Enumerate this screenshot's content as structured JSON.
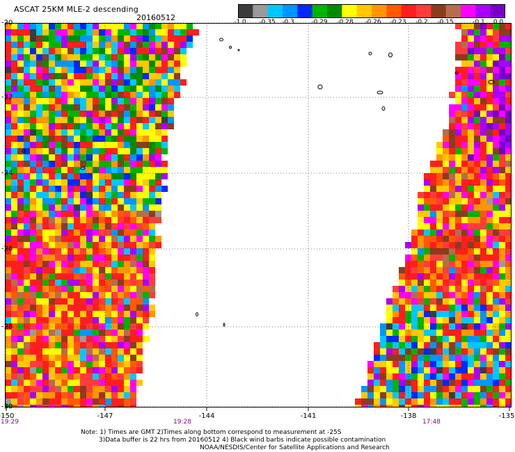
{
  "header": {
    "title": "ASCAT 25KM MLE-2 descending",
    "date": "20160512"
  },
  "colorbar": {
    "colors": [
      "#3c3c3c",
      "#9a9a9a",
      "#00c8ff",
      "#0096ff",
      "#0028ff",
      "#00b400",
      "#008c00",
      "#ffff00",
      "#ffc800",
      "#ff9600",
      "#ff5a00",
      "#ff1e1e",
      "#ff3c3c",
      "#8c3c1e",
      "#b46e4b",
      "#ff00ff",
      "#aa00ff",
      "#7800c8"
    ],
    "labels": [
      "-1.0",
      "-0.35",
      "-0.3",
      "-0.29",
      "-0.28",
      "-0.26",
      "-0.23",
      "-0.2",
      "-0.15",
      "-0.1",
      "0.0"
    ]
  },
  "axes": {
    "x_ticks": [
      "-150",
      "-147",
      "-144",
      "-141",
      "-138",
      "-135"
    ],
    "y_ticks": [
      "-20",
      "-22",
      "-24",
      "-26",
      "-28",
      "-30"
    ],
    "times": [
      "19:29",
      "19:28",
      "17:48"
    ]
  },
  "notes": [
    "Note: 1) Times are GMT 2)Times along bottom correspond to measurement at -25S",
    "3)Data buffer is 22 hrs from 20160512 4) Black wind barbs indicate possible contamination",
    "NOAA/NESDIS/Center for Satellite Applications and Research"
  ]
}
